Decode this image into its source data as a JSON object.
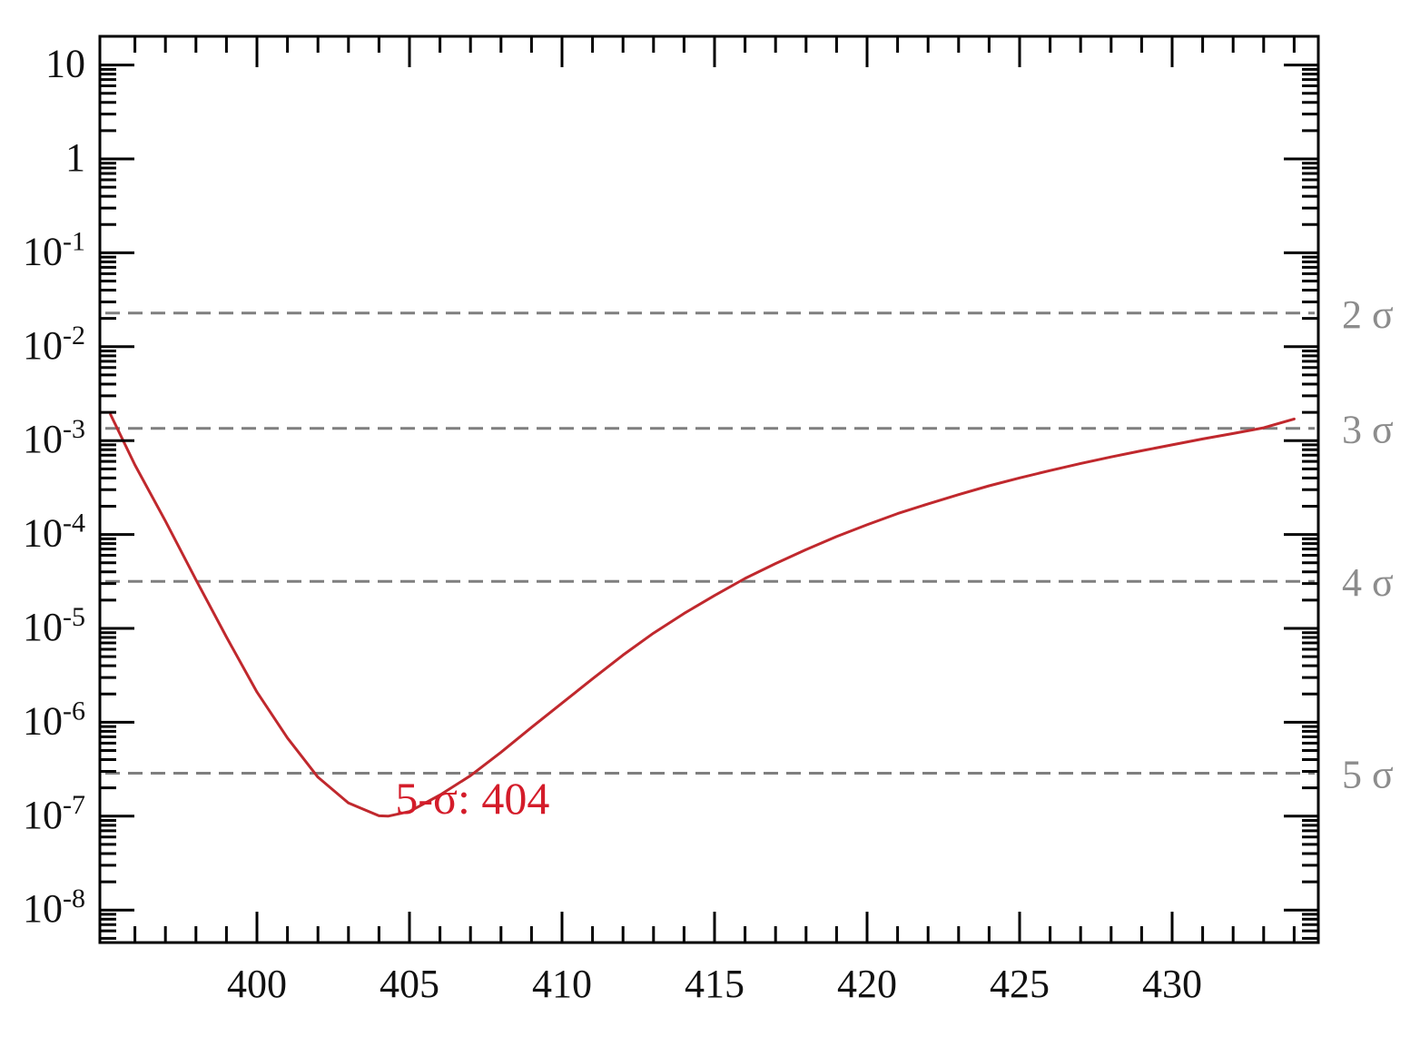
{
  "chart_data": {
    "type": "line",
    "title": "",
    "xlabel": "",
    "ylabel": "",
    "xlim": [
      395,
      435
    ],
    "ylim": [
      1e-08,
      20
    ],
    "yscale": "log",
    "grid": false,
    "x_ticks": [
      400,
      405,
      410,
      415,
      420,
      425,
      430
    ],
    "x_tick_labels": [
      "400",
      "405",
      "410",
      "415",
      "420",
      "425",
      "430"
    ],
    "y_ticks": [
      {
        "value": 10,
        "base": "10",
        "exp": ""
      },
      {
        "value": 1,
        "base": "1",
        "exp": ""
      },
      {
        "value": 0.1,
        "base": "10",
        "exp": "-1"
      },
      {
        "value": 0.01,
        "base": "10",
        "exp": "-2"
      },
      {
        "value": 0.001,
        "base": "10",
        "exp": "-3"
      },
      {
        "value": 0.0001,
        "base": "10",
        "exp": "-4"
      },
      {
        "value": 1e-05,
        "base": "10",
        "exp": "-5"
      },
      {
        "value": 1e-06,
        "base": "10",
        "exp": "-6"
      },
      {
        "value": 1e-07,
        "base": "10",
        "exp": "-7"
      },
      {
        "value": 1e-08,
        "base": "10",
        "exp": "-8"
      }
    ],
    "series": [
      {
        "color": "#c0282d",
        "x": [
          395.2,
          396,
          397,
          398,
          399,
          400,
          401,
          402,
          403,
          404,
          404.3,
          405,
          406,
          407,
          408,
          409,
          410,
          411,
          412,
          413,
          414,
          415,
          416,
          417,
          418,
          419,
          420,
          421,
          422,
          423,
          424,
          425,
          426,
          427,
          428,
          429,
          430,
          431,
          432,
          433,
          434
        ],
        "y": [
          0.0019,
          0.00055,
          0.000139,
          3.3e-05,
          8.1e-06,
          2.1e-06,
          6.8e-07,
          2.6e-07,
          1.38e-07,
          1.01e-07,
          1e-07,
          1.12e-07,
          1.68e-07,
          2.7e-07,
          4.8e-07,
          8.8e-07,
          1.6e-06,
          2.9e-06,
          5.2e-06,
          8.9e-06,
          1.44e-05,
          2.24e-05,
          3.4e-05,
          4.9e-05,
          6.9e-05,
          9.5e-05,
          0.000127,
          0.000167,
          0.000212,
          0.000266,
          0.00033,
          0.0004,
          0.00048,
          0.00057,
          0.00067,
          0.00078,
          0.0009,
          0.00104,
          0.00119,
          0.00137,
          0.0017
        ]
      }
    ],
    "reference_lines": [
      {
        "label": "2 σ",
        "value": 0.0228,
        "color": "#7f7f7f",
        "style": "dashed"
      },
      {
        "label": "3 σ",
        "value": 0.00135,
        "color": "#7f7f7f",
        "style": "dashed"
      },
      {
        "label": "4 σ",
        "value": 3.17e-05,
        "color": "#7f7f7f",
        "style": "dashed"
      },
      {
        "label": "5 σ",
        "value": 2.87e-07,
        "color": "#7f7f7f",
        "style": "dashed"
      }
    ],
    "annotations": [
      {
        "text": "5-σ: 404",
        "x": 409,
        "y": 7e-08,
        "color": "#d41c2a"
      }
    ]
  }
}
